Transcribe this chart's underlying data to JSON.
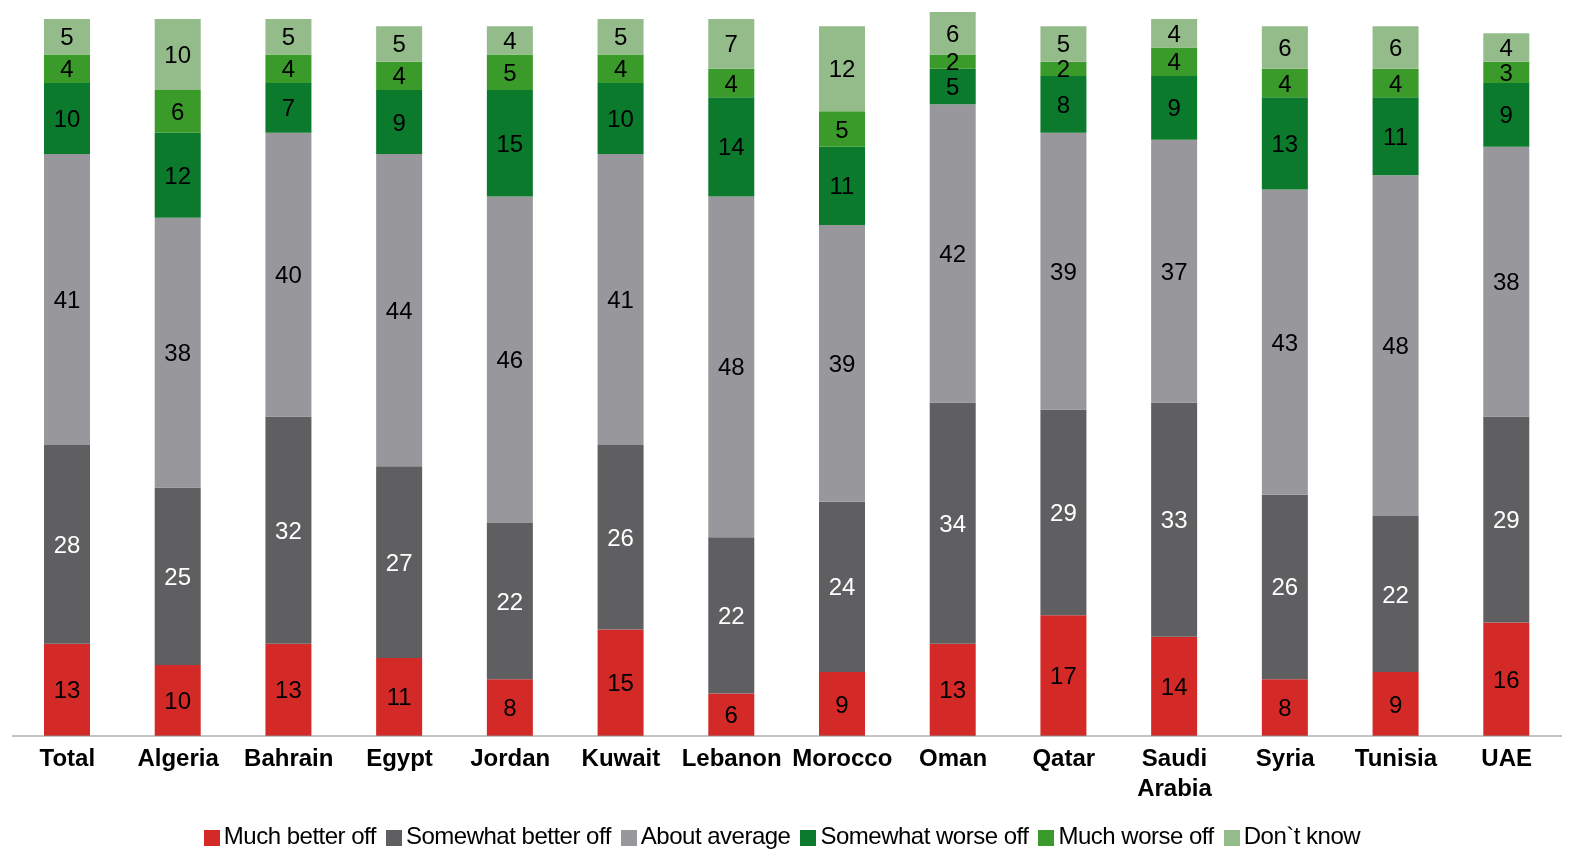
{
  "chart_data": {
    "type": "bar",
    "stacked": true,
    "data_labels": true,
    "legend": "bottom",
    "grid": false,
    "categories": [
      "Total",
      "Algeria",
      "Bahrain",
      "Egypt",
      "Jordan",
      "Kuwait",
      "Lebanon",
      "Morocco",
      "Oman",
      "Qatar",
      "Saudi Arabia",
      "Syria",
      "Tunisia",
      "UAE"
    ],
    "series": [
      {
        "name": "Much better off",
        "color": "#d42a27",
        "values": [
          13,
          10,
          13,
          11,
          8,
          15,
          6,
          9,
          13,
          17,
          14,
          8,
          9,
          16
        ]
      },
      {
        "name": "Somewhat better off",
        "color": "#5f5f61",
        "values": [
          28,
          25,
          32,
          27,
          22,
          26,
          22,
          24,
          34,
          29,
          33,
          26,
          22,
          29
        ]
      },
      {
        "name": "About average",
        "color": "#98989c",
        "values": [
          41,
          38,
          40,
          44,
          46,
          41,
          48,
          39,
          42,
          39,
          37,
          43,
          48,
          38
        ]
      },
      {
        "name": "Somewhat worse off",
        "color": "#0b7a2c",
        "values": [
          10,
          12,
          7,
          9,
          15,
          10,
          14,
          11,
          5,
          8,
          9,
          13,
          11,
          9
        ]
      },
      {
        "name": "Much worse off",
        "color": "#3a9a2a",
        "values": [
          4,
          6,
          4,
          4,
          5,
          4,
          4,
          5,
          2,
          2,
          4,
          4,
          4,
          3
        ]
      },
      {
        "name": "Don`t know",
        "color": "#94bb8a",
        "values": [
          5,
          10,
          5,
          5,
          4,
          5,
          7,
          12,
          6,
          5,
          4,
          6,
          6,
          4
        ]
      }
    ]
  }
}
